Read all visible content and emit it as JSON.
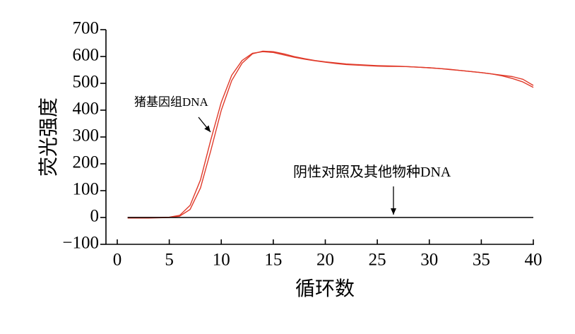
{
  "chart_data": {
    "type": "line",
    "x_label": "循环数",
    "y_label": "荧光强度",
    "annotations": [
      "猪基因组DNA",
      "阴性对照及其他物种DNA"
    ],
    "x": [
      1,
      2,
      3,
      4,
      5,
      6,
      7,
      8,
      9,
      10,
      11,
      12,
      13,
      14,
      15,
      16,
      17,
      18,
      19,
      20,
      21,
      22,
      23,
      24,
      25,
      26,
      27,
      28,
      29,
      30,
      31,
      32,
      33,
      34,
      35,
      36,
      37,
      38,
      39,
      40
    ],
    "series": [
      {
        "color": "#e03a2a",
        "values": [
          -2,
          -2,
          -2,
          -1,
          0,
          5,
          30,
          110,
          250,
          400,
          510,
          575,
          610,
          620,
          618,
          610,
          600,
          592,
          585,
          580,
          576,
          572,
          570,
          568,
          566,
          565,
          564,
          562,
          560,
          558,
          555,
          552,
          548,
          544,
          540,
          535,
          528,
          518,
          505,
          485
        ]
      },
      {
        "color": "#e03a2a",
        "values": [
          0,
          0,
          0,
          0,
          1,
          8,
          45,
          140,
          290,
          430,
          530,
          585,
          612,
          618,
          615,
          606,
          597,
          590,
          584,
          579,
          574,
          570,
          568,
          566,
          564,
          563,
          563,
          562,
          560,
          558,
          555,
          551,
          548,
          544,
          540,
          535,
          530,
          525,
          515,
          492
        ]
      },
      {
        "color": "#000000",
        "values": [
          0,
          0,
          0,
          0,
          0,
          0,
          0,
          0,
          0,
          0,
          0,
          0,
          0,
          0,
          0,
          0,
          0,
          0,
          0,
          0,
          0,
          0,
          0,
          0,
          0,
          0,
          0,
          0,
          0,
          0,
          0,
          0,
          0,
          0,
          0,
          0,
          0,
          0,
          0,
          0
        ]
      }
    ],
    "xlim": [
      0,
      40
    ],
    "xticks": [
      0,
      5,
      10,
      15,
      20,
      25,
      30,
      35,
      40
    ],
    "ylim": [
      -100,
      700
    ],
    "yticks": [
      {
        "value": -100,
        "label": "−100"
      },
      0,
      100,
      200,
      300,
      400,
      500,
      600,
      700
    ]
  }
}
